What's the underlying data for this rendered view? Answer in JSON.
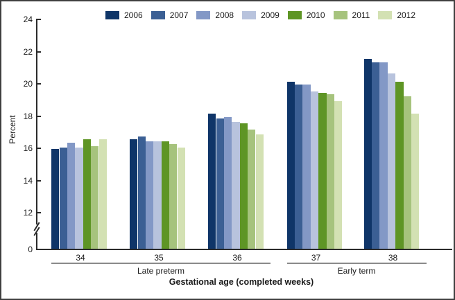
{
  "chart_data": {
    "type": "bar",
    "title": "",
    "ylabel": "Percent",
    "xlabel": "Gestational age (completed weeks)",
    "categories": [
      "34",
      "35",
      "36",
      "37",
      "38"
    ],
    "category_groups": [
      {
        "label": "Late preterm",
        "first": 0,
        "last": 2
      },
      {
        "label": "Early term",
        "first": 3,
        "last": 4
      }
    ],
    "series": [
      {
        "name": "2006",
        "color": "#0F3568",
        "values": [
          15.9,
          16.5,
          18.1,
          20.1,
          21.5
        ]
      },
      {
        "name": "2007",
        "color": "#3B5F94",
        "values": [
          16.0,
          16.7,
          17.8,
          19.9,
          21.3
        ]
      },
      {
        "name": "2008",
        "color": "#8398C6",
        "values": [
          16.3,
          16.4,
          17.9,
          19.9,
          21.3
        ]
      },
      {
        "name": "2009",
        "color": "#B8C3DD",
        "values": [
          16.0,
          16.4,
          17.6,
          19.5,
          20.6
        ]
      },
      {
        "name": "2010",
        "color": "#5E9525",
        "values": [
          16.5,
          16.4,
          17.5,
          19.4,
          20.1
        ]
      },
      {
        "name": "2011",
        "color": "#A6C37D",
        "values": [
          16.1,
          16.2,
          17.1,
          19.3,
          19.2
        ]
      },
      {
        "name": "2012",
        "color": "#D3E1B3",
        "values": [
          16.5,
          16.0,
          16.8,
          18.9,
          18.1
        ]
      }
    ],
    "yticks": [
      0,
      12,
      14,
      16,
      18,
      20,
      22,
      24
    ],
    "ylim": [
      0,
      24
    ],
    "axis_break_between": [
      0,
      12
    ],
    "grid": false,
    "legend_position": "top"
  }
}
